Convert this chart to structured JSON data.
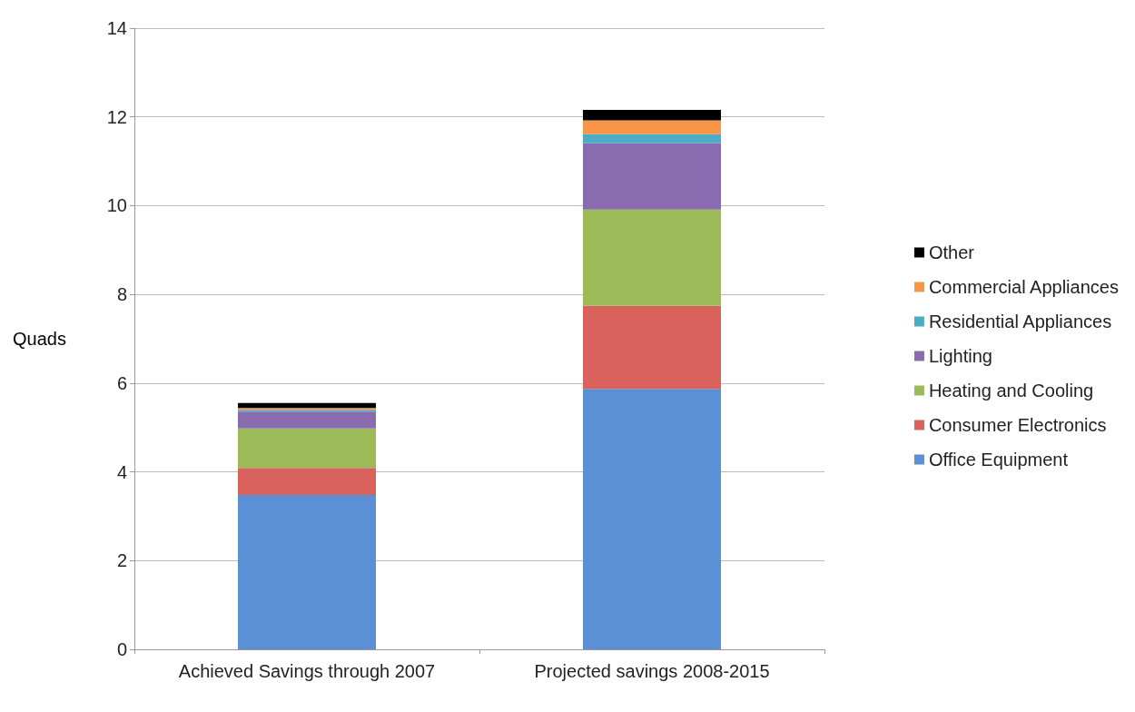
{
  "chart_data": {
    "type": "bar",
    "stacked": true,
    "ylabel": "Quads",
    "categories": [
      "Achieved Savings through 2007",
      "Projected savings 2008-2015"
    ],
    "series": [
      {
        "name": "Office Equipment",
        "color": "#5b8fd6",
        "values": [
          3.48,
          5.87
        ]
      },
      {
        "name": "Consumer Electronics",
        "color": "#d9625c",
        "values": [
          0.61,
          1.87
        ]
      },
      {
        "name": "Heating and Cooling",
        "color": "#9bbb59",
        "values": [
          0.89,
          2.17
        ]
      },
      {
        "name": "Lighting",
        "color": "#8a6bb0",
        "values": [
          0.38,
          1.5
        ]
      },
      {
        "name": "Residential Appliances",
        "color": "#4bacc6",
        "values": [
          0.04,
          0.2
        ]
      },
      {
        "name": "Commercial Appliances",
        "color": "#f79646",
        "values": [
          0.04,
          0.31
        ]
      },
      {
        "name": "Other",
        "color": "#000000",
        "values": [
          0.11,
          0.24
        ]
      }
    ],
    "ylim": [
      0,
      14
    ],
    "yticks": [
      0,
      2,
      4,
      6,
      8,
      10,
      12,
      14
    ],
    "grid": "y",
    "legend": "right"
  }
}
